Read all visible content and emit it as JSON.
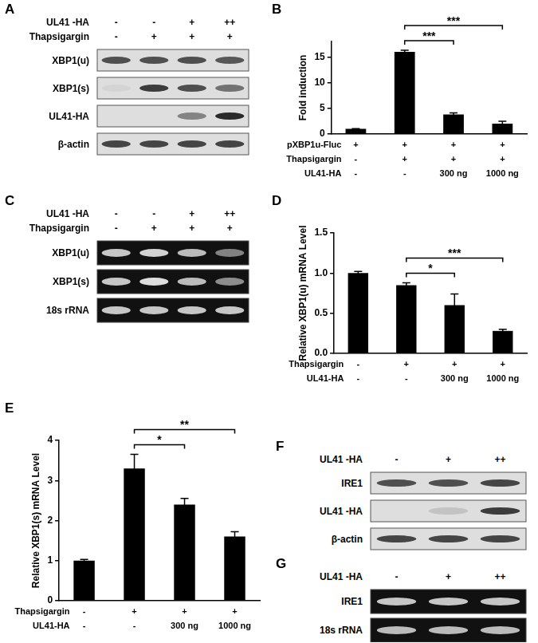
{
  "chart_data": [
    {
      "title": "B",
      "type": "bar",
      "categories": [
        null,
        null,
        null,
        null
      ],
      "values": [
        1,
        16,
        3.8,
        2
      ],
      "errors": [
        0.05,
        0.3,
        0.3,
        0.5
      ],
      "color": "#000000",
      "ylabel": "Fold induction",
      "ylim": [
        0,
        18
      ],
      "yticks": [
        0,
        5,
        10,
        15
      ],
      "grid": false,
      "conditions": [
        {
          "label": "pXBP1u-Fluc",
          "cells": [
            "+",
            "+",
            "+",
            "+"
          ]
        },
        {
          "label": "Thapsigargin",
          "cells": [
            "-",
            "+",
            "+",
            "+"
          ]
        },
        {
          "label": "UL41-HA",
          "cells": [
            "-",
            "-",
            "300 ng",
            "1000 ng"
          ]
        }
      ],
      "significance": [
        {
          "from": 1,
          "to": 2,
          "label": "***"
        },
        {
          "from": 1,
          "to": 3,
          "label": "***"
        }
      ]
    },
    {
      "title": "D",
      "type": "bar",
      "categories": [
        null,
        null,
        null,
        null
      ],
      "values": [
        1.0,
        0.85,
        0.6,
        0.28
      ],
      "errors": [
        0.02,
        0.03,
        0.14,
        0.02
      ],
      "color": "#000000",
      "ylabel": "Relative XBP1(u) mRNA Level",
      "ylim": [
        0,
        1.5
      ],
      "yticks": [
        {
          "value": 0,
          "label": "0.0"
        },
        0.5,
        {
          "value": 1,
          "label": "1.0"
        },
        1.5
      ],
      "grid": false,
      "conditions": [
        {
          "label": "Thapsigargin",
          "cells": [
            "-",
            "+",
            "+",
            "+"
          ]
        },
        {
          "label": "UL41-HA",
          "cells": [
            "-",
            "-",
            "300 ng",
            "1000 ng"
          ]
        }
      ],
      "significance": [
        {
          "from": 1,
          "to": 2,
          "label": "*"
        },
        {
          "from": 1,
          "to": 3,
          "label": "***"
        }
      ]
    },
    {
      "title": "E",
      "type": "bar",
      "categories": [
        null,
        null,
        null,
        null
      ],
      "values": [
        1.0,
        3.3,
        2.4,
        1.6
      ],
      "errors": [
        0.03,
        0.35,
        0.15,
        0.12
      ],
      "color": "#000000",
      "ylabel": "Relative XBP1(s) mRNA Level",
      "ylim": [
        0,
        4
      ],
      "yticks": [
        0,
        1,
        2,
        3,
        4
      ],
      "grid": false,
      "conditions": [
        {
          "label": "Thapsigargin",
          "cells": [
            "-",
            "+",
            "+",
            "+"
          ]
        },
        {
          "label": "UL41-HA",
          "cells": [
            "-",
            "-",
            "300 ng",
            "1000 ng"
          ]
        }
      ],
      "significance": [
        {
          "from": 1,
          "to": 2,
          "label": "*"
        },
        {
          "from": 1,
          "to": 3,
          "label": "**"
        }
      ]
    }
  ],
  "blots": [
    {
      "title": "A",
      "type": "western_blot",
      "header": [
        {
          "label": "UL41 -HA",
          "cells": [
            "-",
            "-",
            "+",
            "++"
          ]
        },
        {
          "label": "Thapsigargin",
          "cells": [
            "-",
            "+",
            "+",
            "+"
          ]
        }
      ],
      "rows": [
        {
          "label": "XBP1(u)",
          "intensity": [
            0.8,
            0.8,
            0.8,
            0.75
          ]
        },
        {
          "label": "XBP1(s)",
          "intensity": [
            0.05,
            0.9,
            0.8,
            0.6
          ]
        },
        {
          "label": "UL41-HA",
          "intensity": [
            0,
            0,
            0.5,
            1
          ]
        },
        {
          "label": "β-actin",
          "intensity": [
            0.85,
            0.85,
            0.85,
            0.85
          ]
        }
      ]
    },
    {
      "title": "C",
      "type": "gel",
      "header": [
        {
          "label": "UL41 -HA",
          "cells": [
            "-",
            "-",
            "+",
            "++"
          ]
        },
        {
          "label": "Thapsigargin",
          "cells": [
            "-",
            "+",
            "+",
            "+"
          ]
        }
      ],
      "rows": [
        {
          "label": "XBP1(u)",
          "intensity": [
            0.8,
            0.85,
            0.75,
            0.5
          ]
        },
        {
          "label": "XBP1(s)",
          "intensity": [
            0.8,
            0.9,
            0.75,
            0.55
          ]
        },
        {
          "label": "18s rRNA",
          "intensity": [
            0.8,
            0.8,
            0.8,
            0.8
          ]
        }
      ]
    },
    {
      "title": "F",
      "type": "western_blot",
      "header": [
        {
          "label": "UL41 -HA",
          "cells": [
            "-",
            "+",
            "++"
          ]
        }
      ],
      "rows": [
        {
          "label": "IRE1",
          "intensity": [
            0.8,
            0.8,
            0.85
          ]
        },
        {
          "label": "UL41 -HA",
          "intensity": [
            0,
            0.15,
            0.9
          ]
        },
        {
          "label": "β-actin",
          "intensity": [
            0.85,
            0.85,
            0.85
          ]
        }
      ]
    },
    {
      "title": "G",
      "type": "gel",
      "header": [
        {
          "label": "UL41 -HA",
          "cells": [
            "-",
            "+",
            "++"
          ]
        }
      ],
      "rows": [
        {
          "label": "IRE1",
          "intensity": [
            0.8,
            0.8,
            0.8
          ]
        },
        {
          "label": "18s rRNA",
          "intensity": [
            0.75,
            0.75,
            0.75
          ]
        }
      ]
    }
  ]
}
